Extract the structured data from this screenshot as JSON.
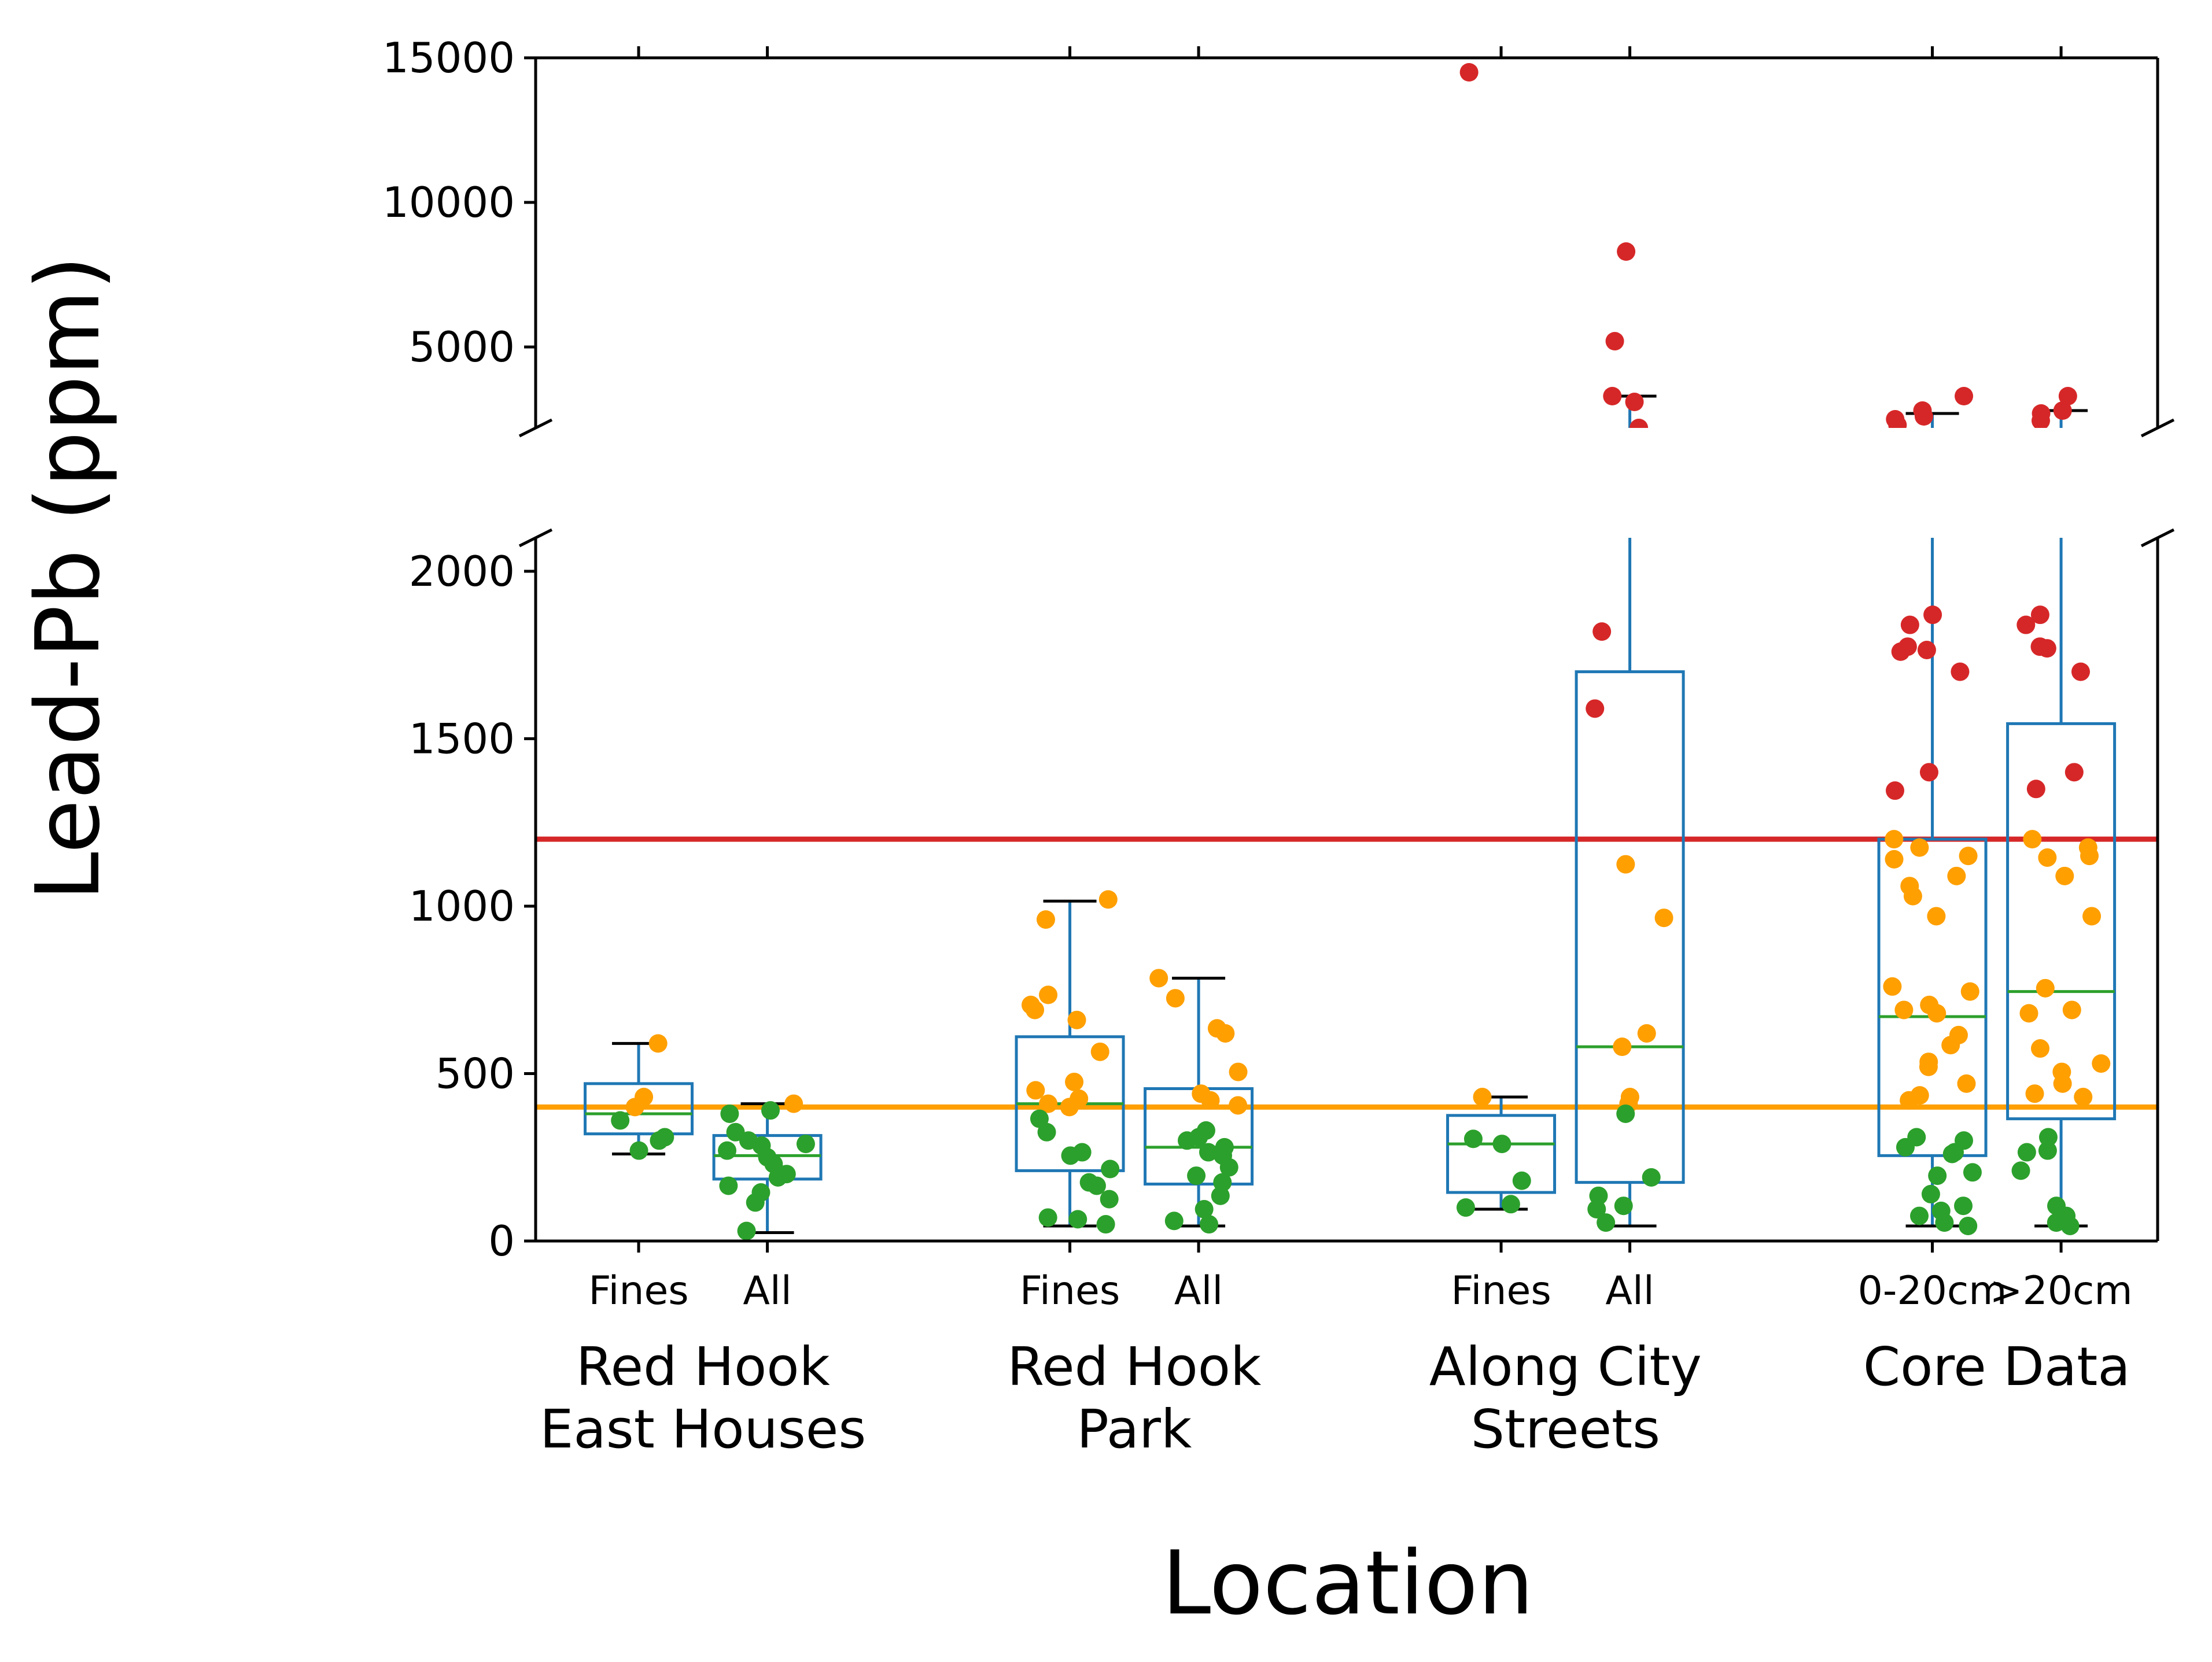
{
  "chart_data": {
    "type": "box",
    "title": "",
    "xlabel": "Location",
    "ylabel": "Lead-Pb (ppm)",
    "broken_axis": true,
    "upper_panel": {
      "ylim": [
        2200,
        15000
      ],
      "yticks": [
        5000,
        10000,
        15000
      ],
      "ytick_labels": [
        "5000",
        "10000",
        "15000"
      ]
    },
    "lower_panel": {
      "ylim": [
        0,
        2100
      ],
      "yticks": [
        0,
        500,
        1000,
        1500,
        2000
      ],
      "ytick_labels": [
        "0",
        "500",
        "1000",
        "1500",
        "2000"
      ]
    },
    "reference_lines": [
      {
        "value": 1200,
        "color": "#d62728"
      },
      {
        "value": 400,
        "color": "#ff9f00"
      }
    ],
    "point_colors": {
      "below_400": "#2ca02c",
      "400_to_1200": "#ff9f00",
      "above_1200": "#d62728"
    },
    "box_color": "#1f77b4",
    "median_color": "#2ca02c",
    "groups": [
      {
        "label": "Red Hook\nEast Houses",
        "label_lines": [
          "Red Hook",
          "East Houses"
        ],
        "boxes": [
          {
            "label": "Fines",
            "x": 1,
            "q1": 320,
            "median": 380,
            "q3": 470,
            "whisker_low": 260,
            "whisker_high": 590,
            "points": [
              590,
              430,
              400,
              360,
              310,
              300,
              270
            ]
          },
          {
            "label": "All",
            "x": 2,
            "q1": 185,
            "median": 255,
            "q3": 315,
            "whisker_low": 25,
            "whisker_high": 410,
            "points": [
              410,
              390,
              380,
              325,
              300,
              290,
              285,
              270,
              250,
              230,
              200,
              190,
              165,
              145,
              115,
              30
            ]
          }
        ]
      },
      {
        "label": "Red Hook\nPark",
        "label_lines": [
          "Red Hook",
          "Park"
        ],
        "boxes": [
          {
            "label": "Fines",
            "x": 4.35,
            "q1": 210,
            "median": 410,
            "q3": 610,
            "whisker_low": 45,
            "whisker_high": 1015,
            "points": [
              1020,
              960,
              735,
              705,
              690,
              660,
              565,
              475,
              450,
              425,
              410,
              400,
              365,
              325,
              265,
              255,
              215,
              175,
              165,
              125,
              70,
              65,
              50
            ]
          },
          {
            "label": "All",
            "x": 5.35,
            "q1": 170,
            "median": 280,
            "q3": 455,
            "whisker_low": 45,
            "whisker_high": 785,
            "points": [
              785,
              725,
              635,
              620,
              505,
              440,
              420,
              405,
              330,
              310,
              300,
              280,
              265,
              255,
              220,
              195,
              175,
              135,
              95,
              60,
              50
            ]
          }
        ]
      },
      {
        "label": "Along City\nStreets",
        "label_lines": [
          "Along City",
          "Streets"
        ],
        "boxes": [
          {
            "label": "Fines",
            "x": 7.7,
            "q1": 145,
            "median": 290,
            "q3": 375,
            "whisker_low": 95,
            "whisker_high": 430,
            "points": [
              14500,
              430,
              305,
              290,
              180,
              110,
              100
            ]
          },
          {
            "label": "All",
            "x": 8.7,
            "q1": 175,
            "median": 580,
            "q3": 1700,
            "whisker_low": 45,
            "whisker_high": 3300,
            "points": [
              8300,
              5200,
              3300,
              3100,
              2200,
              1820,
              1590,
              1125,
              965,
              620,
              580,
              430,
              410,
              380,
              190,
              135,
              105,
              95,
              55
            ]
          }
        ]
      },
      {
        "label": "Core Data",
        "label_lines": [
          "Core Data"
        ],
        "boxes": [
          {
            "label": "0-20cm",
            "x": 11.05,
            "q1": 255,
            "median": 670,
            "q3": 1200,
            "whisker_low": 45,
            "whisker_high": 2700,
            "points": [
              3300,
              2800,
              2600,
              2500,
              2300,
              1870,
              1840,
              1775,
              1765,
              1760,
              1700,
              1400,
              1345,
              1200,
              1175,
              1150,
              1140,
              1090,
              1060,
              1030,
              970,
              760,
              745,
              705,
              690,
              680,
              615,
              585,
              535,
              520,
              470,
              435,
              420,
              310,
              300,
              280,
              265,
              260,
              205,
              195,
              140,
              105,
              90,
              75,
              55,
              45
            ]
          },
          {
            "label": ">20cm",
            "x": 12.05,
            "q1": 365,
            "median": 745,
            "q3": 1545,
            "whisker_low": 45,
            "whisker_high": 2800,
            "points": [
              3300,
              2800,
              2700,
              2450,
              1870,
              1840,
              1775,
              1770,
              1700,
              1400,
              1350,
              1200,
              1175,
              1150,
              1145,
              1090,
              970,
              755,
              690,
              680,
              575,
              530,
              505,
              470,
              440,
              430,
              310,
              270,
              265,
              210,
              105,
              75,
              55,
              45
            ]
          }
        ]
      }
    ]
  }
}
